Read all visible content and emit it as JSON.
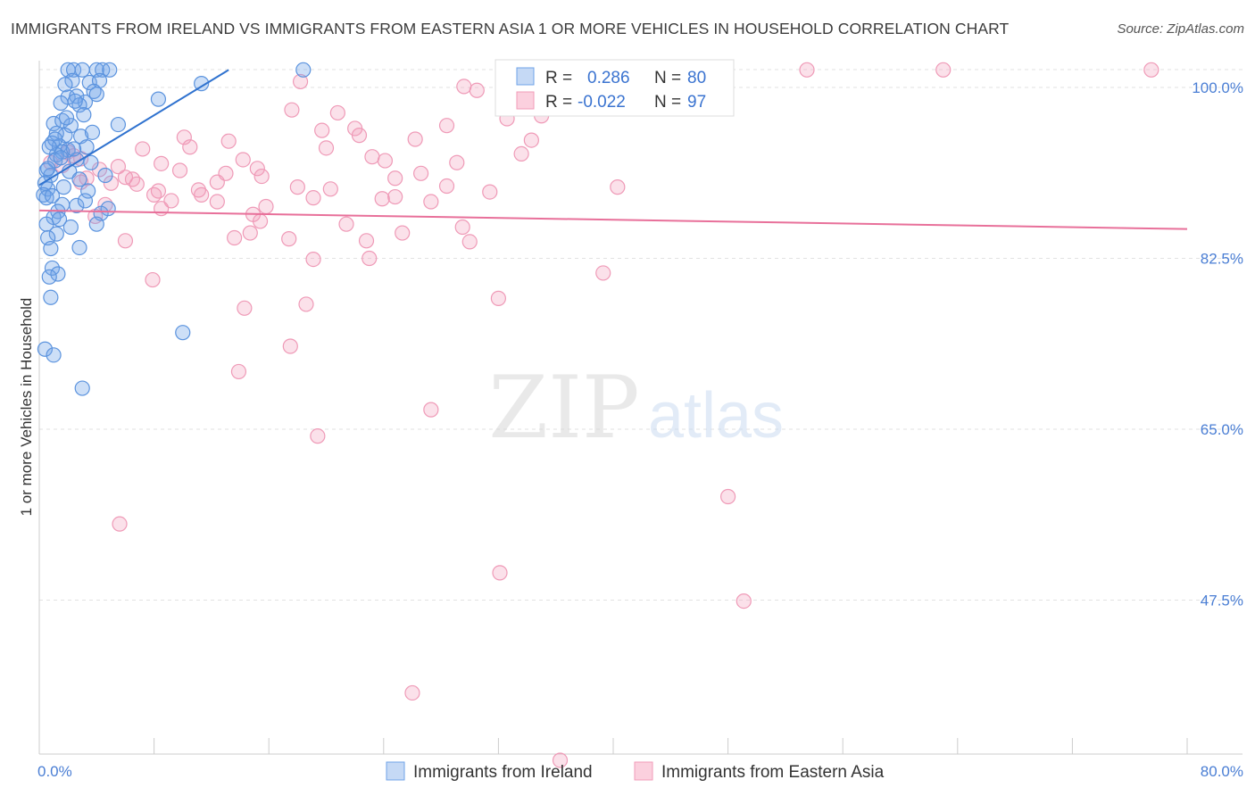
{
  "title": "IMMIGRANTS FROM IRELAND VS IMMIGRANTS FROM EASTERN ASIA 1 OR MORE VEHICLES IN HOUSEHOLD CORRELATION CHART",
  "source": "Source: ZipAtlas.com",
  "watermark": {
    "zip": "ZIP",
    "atlas": "atlas"
  },
  "colors": {
    "blue": "#6fa3e8",
    "blue_line": "#2f72cf",
    "pink": "#f19bb8",
    "pink_line": "#e8709a",
    "tick": "#4a7ed4"
  },
  "chart_data": {
    "type": "scatter",
    "title": "IMMIGRANTS FROM IRELAND VS IMMIGRANTS FROM EASTERN ASIA 1 OR MORE VEHICLES IN HOUSEHOLD CORRELATION CHART",
    "xlabel": "",
    "ylabel": "1 or more Vehicles in Household",
    "xlim": [
      0,
      80
    ],
    "ylim": [
      30,
      103
    ],
    "x_tick_labels": {
      "left": "0.0%",
      "right": "80.0%"
    },
    "y_ticks": [
      {
        "value": 100,
        "label": "100.0%"
      },
      {
        "value": 82.5,
        "label": "82.5%"
      },
      {
        "value": 65,
        "label": "65.0%"
      },
      {
        "value": 47.5,
        "label": "47.5%"
      }
    ],
    "legend": {
      "entries": [
        {
          "r_label": "R =",
          "r_value": "0.286",
          "n_label": "N =",
          "n_value": "80"
        },
        {
          "r_label": "R =",
          "r_value": "-0.022",
          "n_label": "N =",
          "n_value": "97"
        }
      ]
    },
    "series": [
      {
        "name": "Immigrants from Ireland",
        "color": "blue",
        "trend": {
          "x": [
            0,
            13.2
          ],
          "y": [
            90,
            101.8
          ]
        },
        "points": [
          [
            2.0,
            101.8
          ],
          [
            2.4,
            101.8
          ],
          [
            3.0,
            101.8
          ],
          [
            4.0,
            101.8
          ],
          [
            4.4,
            101.8
          ],
          [
            4.9,
            101.8
          ],
          [
            18.4,
            101.8
          ],
          [
            2.3,
            100.7
          ],
          [
            3.5,
            100.5
          ],
          [
            4.2,
            100.7
          ],
          [
            11.3,
            100.4
          ],
          [
            1.8,
            100.3
          ],
          [
            3.8,
            99.6
          ],
          [
            2.0,
            99.0
          ],
          [
            2.6,
            99.1
          ],
          [
            3.2,
            98.5
          ],
          [
            4.0,
            99.3
          ],
          [
            1.5,
            98.4
          ],
          [
            2.8,
            98.2
          ],
          [
            8.3,
            98.8
          ],
          [
            1.0,
            96.3
          ],
          [
            1.6,
            96.6
          ],
          [
            2.2,
            96.1
          ],
          [
            5.5,
            96.2
          ],
          [
            1.8,
            95.1
          ],
          [
            2.9,
            95.0
          ],
          [
            1.2,
            95.3
          ],
          [
            0.9,
            94.3
          ],
          [
            1.4,
            94.0
          ],
          [
            3.3,
            93.9
          ],
          [
            2.0,
            93.6
          ],
          [
            1.6,
            93.4
          ],
          [
            1.2,
            93.1
          ],
          [
            2.6,
            92.6
          ],
          [
            3.6,
            92.3
          ],
          [
            1.1,
            92.5
          ],
          [
            0.5,
            91.5
          ],
          [
            0.8,
            91.0
          ],
          [
            4.6,
            91.0
          ],
          [
            0.4,
            90.2
          ],
          [
            0.6,
            89.6
          ],
          [
            0.3,
            89.0
          ],
          [
            3.4,
            89.4
          ],
          [
            0.5,
            88.7
          ],
          [
            1.6,
            88.0
          ],
          [
            2.6,
            87.9
          ],
          [
            4.8,
            87.6
          ],
          [
            1.3,
            87.3
          ],
          [
            4.3,
            87.1
          ],
          [
            1.0,
            86.7
          ],
          [
            0.5,
            86.0
          ],
          [
            1.2,
            85.0
          ],
          [
            0.6,
            84.6
          ],
          [
            0.8,
            83.5
          ],
          [
            2.8,
            83.6
          ],
          [
            0.9,
            81.5
          ],
          [
            1.3,
            80.9
          ],
          [
            0.7,
            80.6
          ],
          [
            0.8,
            78.5
          ],
          [
            10.0,
            74.9
          ],
          [
            0.4,
            73.2
          ],
          [
            1.0,
            72.6
          ],
          [
            3.0,
            69.2
          ],
          [
            0.6,
            91.7
          ],
          [
            1.5,
            92.8
          ],
          [
            2.4,
            93.7
          ],
          [
            3.1,
            97.2
          ],
          [
            2.5,
            98.6
          ],
          [
            1.9,
            96.9
          ],
          [
            3.7,
            95.4
          ],
          [
            1.1,
            94.7
          ],
          [
            0.7,
            93.9
          ],
          [
            2.1,
            91.4
          ],
          [
            2.8,
            90.6
          ],
          [
            1.7,
            89.8
          ],
          [
            0.9,
            88.9
          ],
          [
            3.2,
            88.4
          ],
          [
            4.0,
            86.0
          ],
          [
            1.4,
            86.5
          ],
          [
            2.2,
            85.7
          ]
        ]
      },
      {
        "name": "Immigrants from Eastern Asia",
        "color": "pink",
        "trend": {
          "x": [
            0,
            80
          ],
          "y": [
            87.4,
            85.5
          ]
        },
        "points": [
          [
            36.2,
            101.9
          ],
          [
            38.0,
            101.8
          ],
          [
            45.0,
            101.8
          ],
          [
            53.5,
            101.8
          ],
          [
            63.0,
            101.8
          ],
          [
            77.5,
            101.8
          ],
          [
            18.2,
            100.6
          ],
          [
            29.6,
            100.1
          ],
          [
            30.5,
            99.7
          ],
          [
            17.6,
            97.7
          ],
          [
            20.8,
            97.4
          ],
          [
            32.6,
            96.8
          ],
          [
            28.4,
            96.1
          ],
          [
            22.0,
            95.8
          ],
          [
            19.7,
            95.6
          ],
          [
            22.3,
            95.1
          ],
          [
            26.2,
            94.7
          ],
          [
            13.2,
            94.5
          ],
          [
            34.3,
            94.6
          ],
          [
            10.5,
            93.9
          ],
          [
            20.0,
            93.8
          ],
          [
            33.6,
            93.2
          ],
          [
            2.0,
            93.4
          ],
          [
            2.9,
            92.7
          ],
          [
            14.2,
            92.6
          ],
          [
            23.2,
            92.9
          ],
          [
            24.1,
            92.5
          ],
          [
            29.1,
            92.3
          ],
          [
            8.5,
            92.2
          ],
          [
            4.2,
            91.6
          ],
          [
            15.2,
            91.7
          ],
          [
            9.8,
            91.5
          ],
          [
            26.6,
            91.2
          ],
          [
            15.5,
            90.9
          ],
          [
            6.5,
            90.6
          ],
          [
            24.8,
            90.7
          ],
          [
            12.4,
            90.3
          ],
          [
            2.9,
            90.3
          ],
          [
            6.8,
            90.1
          ],
          [
            5.0,
            90.2
          ],
          [
            18.0,
            89.8
          ],
          [
            28.4,
            89.9
          ],
          [
            40.3,
            89.8
          ],
          [
            11.1,
            89.5
          ],
          [
            31.4,
            89.3
          ],
          [
            20.3,
            89.6
          ],
          [
            8.3,
            89.4
          ],
          [
            11.3,
            89.0
          ],
          [
            24.8,
            88.8
          ],
          [
            19.1,
            88.7
          ],
          [
            9.2,
            88.4
          ],
          [
            27.3,
            88.3
          ],
          [
            12.4,
            88.3
          ],
          [
            4.6,
            88.0
          ],
          [
            8.5,
            87.6
          ],
          [
            14.9,
            87.0
          ],
          [
            3.9,
            86.8
          ],
          [
            15.4,
            86.3
          ],
          [
            21.4,
            86.0
          ],
          [
            29.5,
            85.7
          ],
          [
            14.7,
            85.1
          ],
          [
            25.3,
            85.1
          ],
          [
            17.4,
            84.5
          ],
          [
            13.6,
            84.6
          ],
          [
            6.0,
            84.3
          ],
          [
            22.8,
            84.3
          ],
          [
            30.0,
            84.2
          ],
          [
            19.1,
            82.4
          ],
          [
            23.0,
            82.5
          ],
          [
            7.9,
            80.3
          ],
          [
            39.3,
            81.0
          ],
          [
            32.0,
            78.4
          ],
          [
            18.6,
            77.8
          ],
          [
            14.3,
            77.4
          ],
          [
            17.5,
            73.5
          ],
          [
            13.9,
            70.9
          ],
          [
            27.3,
            67.0
          ],
          [
            19.4,
            64.3
          ],
          [
            48.0,
            58.1
          ],
          [
            5.6,
            55.3
          ],
          [
            32.1,
            50.3
          ],
          [
            49.1,
            47.4
          ],
          [
            26.0,
            38.0
          ],
          [
            36.3,
            31.1
          ],
          [
            2.4,
            93.0
          ],
          [
            0.8,
            92.3
          ],
          [
            6.0,
            90.8
          ],
          [
            5.5,
            91.9
          ],
          [
            10.1,
            94.9
          ],
          [
            35.0,
            97.1
          ],
          [
            23.9,
            88.6
          ],
          [
            15.8,
            87.8
          ],
          [
            7.2,
            93.7
          ],
          [
            1.6,
            92.0
          ],
          [
            3.3,
            90.7
          ],
          [
            8.0,
            89.0
          ],
          [
            13.0,
            91.2
          ]
        ]
      }
    ]
  },
  "bottom_legend": [
    "Immigrants from Ireland",
    "Immigrants from Eastern Asia"
  ]
}
